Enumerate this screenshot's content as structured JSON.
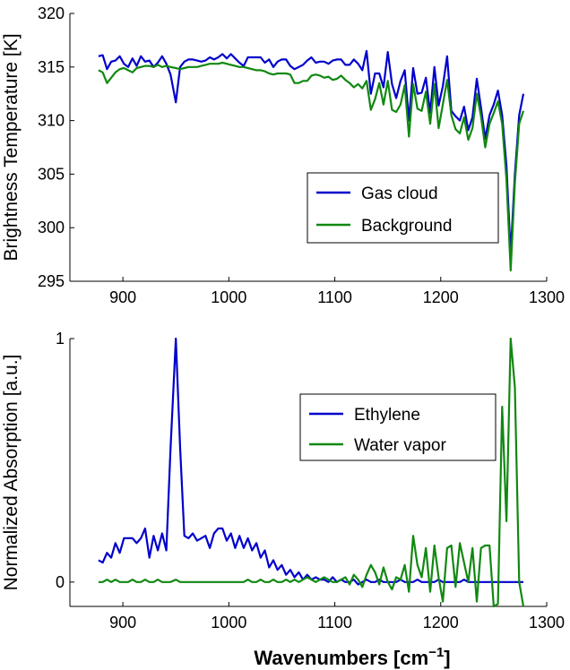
{
  "figure_xlabel_main": "Wavenumbers [cm",
  "figure_xlabel_sup": "−1",
  "figure_xlabel_end": "]",
  "chart_data": [
    {
      "type": "line",
      "title": "",
      "xlabel": "",
      "ylabel": "Brightness Temperature [K]",
      "xlim": [
        850,
        1300
      ],
      "ylim": [
        295,
        320
      ],
      "xticks": [
        900,
        1000,
        1100,
        1200,
        1300
      ],
      "yticks": [
        295,
        300,
        305,
        310,
        315,
        320
      ],
      "legend_position": "center-right",
      "series": [
        {
          "name": "Gas cloud",
          "color": "#0000cc",
          "x": [
            877,
            881,
            885,
            889,
            893,
            897,
            901,
            905,
            909,
            913,
            917,
            921,
            925,
            929,
            933,
            937,
            941,
            945,
            950,
            954,
            958,
            962,
            966,
            970,
            974,
            978,
            982,
            986,
            990,
            994,
            998,
            1002,
            1006,
            1010,
            1014,
            1018,
            1022,
            1026,
            1030,
            1034,
            1038,
            1042,
            1046,
            1050,
            1054,
            1058,
            1062,
            1066,
            1070,
            1074,
            1078,
            1082,
            1086,
            1090,
            1094,
            1098,
            1102,
            1106,
            1110,
            1114,
            1118,
            1122,
            1126,
            1130,
            1134,
            1138,
            1142,
            1146,
            1150,
            1154,
            1158,
            1162,
            1166,
            1170,
            1174,
            1178,
            1182,
            1186,
            1190,
            1194,
            1198,
            1202,
            1206,
            1210,
            1214,
            1218,
            1222,
            1226,
            1230,
            1234,
            1238,
            1242,
            1246,
            1250,
            1254,
            1258,
            1262,
            1266,
            1270,
            1274,
            1278
          ],
          "y": [
            316.0,
            316.1,
            314.8,
            315.5,
            315.6,
            316.0,
            315.3,
            315.0,
            315.8,
            315.1,
            316.0,
            315.5,
            315.6,
            315.0,
            315.4,
            316.0,
            315.3,
            314.3,
            311.7,
            315.0,
            315.5,
            315.7,
            315.7,
            315.6,
            315.5,
            315.6,
            315.9,
            315.7,
            315.9,
            316.2,
            315.8,
            316.2,
            315.8,
            315.4,
            315.1,
            315.9,
            315.9,
            315.9,
            315.9,
            315.4,
            315.7,
            315.0,
            315.5,
            315.7,
            315.7,
            315.1,
            314.8,
            315.0,
            315.2,
            315.6,
            315.9,
            315.4,
            315.5,
            315.5,
            315.3,
            315.6,
            315.7,
            315.7,
            315.2,
            315.2,
            315.7,
            315.3,
            314.7,
            316.5,
            312.5,
            314.4,
            314.4,
            313.1,
            316.4,
            313.4,
            312.1,
            313.7,
            314.7,
            310.0,
            314.9,
            312.5,
            312.6,
            314.0,
            310.7,
            315.0,
            311.4,
            313.2,
            316.0,
            310.9,
            310.4,
            310.0,
            311.3,
            309.1,
            310.3,
            313.9,
            311.2,
            308.3,
            310.5,
            311.5,
            312.8,
            310.5,
            305.8,
            297.5,
            305.0,
            310.5,
            312.5
          ]
        },
        {
          "name": "Background",
          "color": "#118811",
          "x": [
            877,
            881,
            885,
            889,
            893,
            897,
            901,
            905,
            909,
            913,
            917,
            921,
            925,
            929,
            933,
            937,
            941,
            945,
            950,
            954,
            958,
            962,
            966,
            970,
            974,
            978,
            982,
            986,
            990,
            994,
            998,
            1002,
            1006,
            1010,
            1014,
            1018,
            1022,
            1026,
            1030,
            1034,
            1038,
            1042,
            1046,
            1050,
            1054,
            1058,
            1062,
            1066,
            1070,
            1074,
            1078,
            1082,
            1086,
            1090,
            1094,
            1098,
            1102,
            1106,
            1110,
            1114,
            1118,
            1122,
            1126,
            1130,
            1134,
            1138,
            1142,
            1146,
            1150,
            1154,
            1158,
            1162,
            1166,
            1170,
            1174,
            1178,
            1182,
            1186,
            1190,
            1194,
            1198,
            1202,
            1206,
            1210,
            1214,
            1218,
            1222,
            1226,
            1230,
            1234,
            1238,
            1242,
            1246,
            1250,
            1254,
            1258,
            1262,
            1266,
            1270,
            1274,
            1278
          ],
          "y": [
            314.7,
            314.5,
            313.5,
            314.0,
            314.5,
            314.8,
            314.9,
            314.7,
            314.5,
            314.9,
            315.0,
            315.1,
            315.1,
            315.0,
            315.2,
            315.0,
            315.1,
            315.0,
            314.9,
            314.8,
            314.9,
            315.0,
            315.0,
            315.0,
            315.1,
            315.2,
            315.3,
            315.3,
            315.3,
            315.4,
            315.3,
            315.2,
            315.1,
            315.0,
            315.0,
            314.9,
            314.8,
            314.7,
            314.7,
            314.6,
            314.4,
            314.3,
            314.4,
            314.4,
            314.4,
            314.3,
            313.5,
            313.5,
            313.7,
            313.7,
            314.2,
            314.3,
            314.2,
            314.0,
            314.1,
            313.8,
            313.9,
            314.2,
            313.8,
            313.5,
            313.1,
            313.4,
            313.0,
            313.7,
            311.0,
            312.0,
            313.5,
            311.5,
            313.7,
            311.0,
            310.8,
            311.5,
            313.3,
            308.5,
            313.4,
            311.1,
            310.9,
            312.7,
            309.7,
            313.4,
            309.3,
            311.5,
            313.8,
            310.5,
            309.2,
            308.8,
            310.3,
            308.2,
            309.3,
            312.5,
            310.4,
            307.5,
            309.7,
            310.7,
            311.8,
            309.7,
            304.5,
            296.0,
            304.2,
            309.7,
            310.9
          ]
        }
      ]
    },
    {
      "type": "line",
      "title": "",
      "xlabel": "Wavenumbers [cm^-1]",
      "ylabel": "Normalized Absorption [a.u.]",
      "xlim": [
        850,
        1300
      ],
      "ylim": [
        -0.1,
        1.0
      ],
      "xticks": [
        900,
        1000,
        1100,
        1200,
        1300
      ],
      "yticks": [
        0,
        1
      ],
      "legend_position": "center-right",
      "series": [
        {
          "name": "Ethylene",
          "color": "#0000cc",
          "x": [
            877,
            881,
            885,
            889,
            893,
            897,
            901,
            905,
            909,
            913,
            917,
            921,
            925,
            929,
            933,
            937,
            941,
            945,
            950,
            954,
            958,
            962,
            966,
            970,
            974,
            978,
            982,
            986,
            990,
            994,
            998,
            1002,
            1006,
            1010,
            1014,
            1018,
            1022,
            1026,
            1030,
            1034,
            1038,
            1042,
            1046,
            1050,
            1054,
            1058,
            1062,
            1066,
            1070,
            1074,
            1078,
            1082,
            1086,
            1090,
            1094,
            1098,
            1102,
            1106,
            1110,
            1114,
            1118,
            1122,
            1126,
            1130,
            1134,
            1138,
            1142,
            1146,
            1150,
            1154,
            1158,
            1162,
            1166,
            1170,
            1174,
            1178,
            1182,
            1186,
            1190,
            1194,
            1198,
            1202,
            1206,
            1210,
            1214,
            1218,
            1222,
            1226,
            1230,
            1234,
            1238,
            1242,
            1246,
            1250,
            1254,
            1258,
            1262,
            1266,
            1270,
            1274,
            1278
          ],
          "y": [
            0.09,
            0.08,
            0.12,
            0.1,
            0.16,
            0.12,
            0.18,
            0.18,
            0.18,
            0.16,
            0.18,
            0.22,
            0.1,
            0.19,
            0.13,
            0.2,
            0.13,
            0.55,
            1.0,
            0.55,
            0.19,
            0.18,
            0.2,
            0.17,
            0.18,
            0.19,
            0.14,
            0.2,
            0.22,
            0.22,
            0.17,
            0.2,
            0.14,
            0.19,
            0.14,
            0.18,
            0.13,
            0.16,
            0.1,
            0.13,
            0.06,
            0.09,
            0.05,
            0.07,
            0.03,
            0.05,
            0.02,
            0.04,
            0.01,
            0.03,
            0.01,
            0.02,
            0.01,
            0.01,
            0.0,
            0.02,
            0.0,
            0.01,
            0.0,
            0.0,
            0.01,
            -0.01,
            0.0,
            0.01,
            0.0,
            0.0,
            0.01,
            0.0,
            0.0,
            0.0,
            0.0,
            0.01,
            0.0,
            0.0,
            0.0,
            0.01,
            0.0,
            0.0,
            0.0,
            0.0,
            0.01,
            0.0,
            0.0,
            0.0,
            0.0,
            0.0,
            0.01,
            0.0,
            0.0,
            0.0,
            0.0,
            0.0,
            0.0,
            0.0,
            0.0,
            0.0,
            0.0,
            0.0,
            0.0,
            0.0,
            0.0
          ]
        },
        {
          "name": "Water vapor",
          "color": "#118811",
          "x": [
            877,
            881,
            885,
            889,
            893,
            897,
            901,
            905,
            909,
            913,
            917,
            921,
            925,
            929,
            933,
            937,
            941,
            945,
            950,
            954,
            958,
            962,
            966,
            970,
            974,
            978,
            982,
            986,
            990,
            994,
            998,
            1002,
            1006,
            1010,
            1014,
            1018,
            1022,
            1026,
            1030,
            1034,
            1038,
            1042,
            1046,
            1050,
            1054,
            1058,
            1062,
            1066,
            1070,
            1074,
            1078,
            1082,
            1086,
            1090,
            1094,
            1098,
            1102,
            1106,
            1110,
            1114,
            1118,
            1122,
            1126,
            1130,
            1134,
            1138,
            1142,
            1146,
            1150,
            1154,
            1158,
            1162,
            1166,
            1170,
            1174,
            1178,
            1182,
            1186,
            1190,
            1194,
            1198,
            1202,
            1206,
            1210,
            1214,
            1218,
            1222,
            1226,
            1230,
            1234,
            1238,
            1242,
            1246,
            1250,
            1254,
            1258,
            1262,
            1266,
            1270,
            1274,
            1278
          ],
          "y": [
            0.0,
            0.0,
            0.01,
            0.0,
            0.01,
            0.0,
            0.0,
            0.0,
            0.01,
            0.0,
            0.0,
            0.01,
            0.0,
            0.0,
            0.01,
            0.0,
            0.0,
            0.0,
            0.01,
            0.0,
            0.0,
            0.0,
            0.0,
            0.0,
            0.0,
            0.0,
            0.0,
            0.0,
            0.0,
            0.0,
            0.0,
            0.0,
            0.0,
            0.0,
            0.0,
            0.01,
            0.0,
            0.0,
            0.01,
            0.0,
            0.0,
            0.01,
            0.0,
            0.0,
            0.01,
            0.0,
            0.01,
            0.0,
            0.01,
            0.02,
            0.01,
            0.0,
            0.01,
            0.02,
            0.01,
            0.0,
            0.0,
            0.01,
            0.02,
            -0.01,
            0.03,
            0.01,
            -0.02,
            0.03,
            0.07,
            0.04,
            -0.01,
            0.06,
            0.0,
            -0.03,
            0.02,
            0.01,
            0.07,
            -0.04,
            0.19,
            0.07,
            0.02,
            0.14,
            -0.04,
            0.15,
            0.02,
            -0.08,
            0.14,
            0.15,
            -0.02,
            0.16,
            0.08,
            0.0,
            0.14,
            -0.08,
            0.14,
            0.15,
            0.15,
            -0.1,
            -0.09,
            0.72,
            0.25,
            1.0,
            0.8,
            0.0,
            -0.1
          ]
        }
      ]
    }
  ]
}
